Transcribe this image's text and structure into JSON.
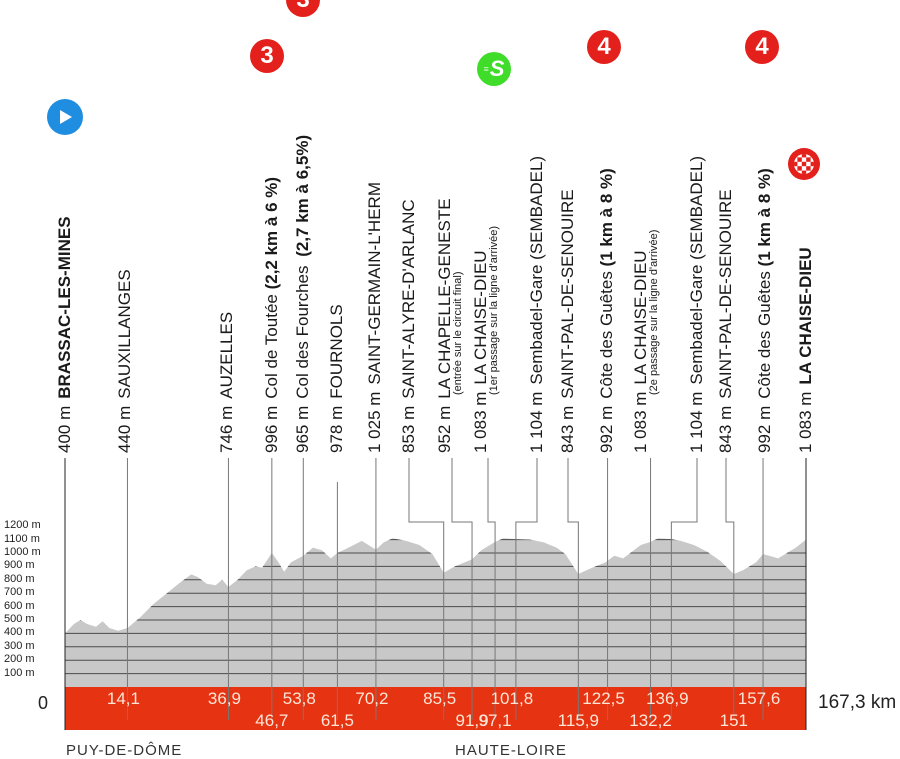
{
  "chart_data": {
    "type": "area",
    "title": "",
    "xlabel": "",
    "ylabel": "Altitude (m)",
    "xlim": [
      0,
      167.3
    ],
    "ylim": [
      0,
      1200
    ],
    "grid": true,
    "y_ticks": [
      "100 m",
      "200 m",
      "300 m",
      "400 m",
      "500 m",
      "600 m",
      "700 m",
      "800 m",
      "900 m",
      "1000 m",
      "1100 m",
      "1200 m"
    ],
    "x_origin_label": "0",
    "total_distance_label": "167,3 km",
    "colors": {
      "profile": "#c8c8c8",
      "band": "#e63312",
      "band_text": "#fde6d6",
      "grid": "#555555"
    },
    "waypoints": [
      {
        "km": 0,
        "km_label": "",
        "altitude": 400,
        "alt_label": "400 m",
        "name": "BRASSAC-LES-MINES",
        "bold": true,
        "icon": "start-icon"
      },
      {
        "km": 14.1,
        "km_label": "14,1",
        "altitude": 440,
        "alt_label": "440 m",
        "name": "SAUXILLANGES"
      },
      {
        "km": 36.9,
        "km_label": "36,9",
        "altitude": 746,
        "alt_label": "746 m",
        "name": "AUZELLES"
      },
      {
        "km": 46.7,
        "km_label": "46,7",
        "altitude": 996,
        "alt_label": "996 m",
        "name": "Col de Toutée",
        "detail": "(2,2 km à 6 %)",
        "category": "3"
      },
      {
        "km": 53.8,
        "km_label": "53,8",
        "altitude": 965,
        "alt_label": "965 m",
        "name": "Col des Fourches",
        "detail": "(2,7 km à 6,5%)",
        "category": "3"
      },
      {
        "km": 61.5,
        "km_label": "61,5",
        "altitude": 978,
        "alt_label": "978 m",
        "name": "FOURNOLS"
      },
      {
        "km": 70.2,
        "km_label": "70,2",
        "altitude": 1025,
        "alt_label": "1 025 m",
        "name": "SAINT-GERMAIN-L'HERM"
      },
      {
        "km": 85.5,
        "km_label": "85,5",
        "altitude": 853,
        "alt_label": "853 m",
        "name": "SAINT-ALYRE-D'ARLANC"
      },
      {
        "km": 91.9,
        "km_label": "91,9",
        "altitude": 952,
        "alt_label": "952 m",
        "name": "LA CHAPELLE-GENESTE",
        "note": "(entrée sur le circuit final)"
      },
      {
        "km": 97.1,
        "km_label": "97,1",
        "altitude": 1083,
        "alt_label": "1 083 m",
        "name": "LA CHAISE-DIEU",
        "note": "(1er passage sur la ligne d'arrivée)",
        "icon": "sprint-icon"
      },
      {
        "km": 101.8,
        "km_label": "101,8",
        "altitude": 1104,
        "alt_label": "1 104 m",
        "name": "Sembadel-Gare (SEMBADEL)"
      },
      {
        "km": 115.9,
        "km_label": "115,9",
        "altitude": 843,
        "alt_label": "843 m",
        "name": "SAINT-PAL-DE-SENOUIRE"
      },
      {
        "km": 122.5,
        "km_label": "122,5",
        "altitude": 992,
        "alt_label": "992 m",
        "name": "Côte des Guêtes",
        "detail": "(1 km à 8 %)",
        "category": "4"
      },
      {
        "km": 132.2,
        "km_label": "132,2",
        "altitude": 1083,
        "alt_label": "1 083 m",
        "name": "LA CHAISE-DIEU",
        "note": "(2e passage sur la ligne d'arrivée)"
      },
      {
        "km": 136.9,
        "km_label": "136,9",
        "altitude": 1104,
        "alt_label": "1 104 m",
        "name": "Sembadel-Gare (SEMBADEL)"
      },
      {
        "km": 151,
        "km_label": "151",
        "altitude": 843,
        "alt_label": "843 m",
        "name": "SAINT-PAL-DE-SENOUIRE"
      },
      {
        "km": 157.6,
        "km_label": "157,6",
        "altitude": 992,
        "alt_label": "992 m",
        "name": "Côte des Guêtes",
        "detail": "(1 km à 8 %)",
        "category": "4"
      },
      {
        "km": 167.3,
        "km_label": "",
        "altitude": 1083,
        "alt_label": "1 083 m",
        "name": "LA CHAISE-DIEU",
        "bold": true,
        "icon": "finish-icon"
      }
    ],
    "km_labels_top": [
      "14,1",
      "36,9",
      "53,8",
      "70,2",
      "85,5",
      "101,8",
      "122,5",
      "136,9",
      "157,6"
    ],
    "km_labels_bottom": [
      "46,7",
      "61,5",
      "91,9",
      "97,1",
      "115,9",
      "132,2",
      "151"
    ],
    "regions": [
      "PUY-DE-DÔME",
      "HAUTE-LOIRE"
    ]
  },
  "badges": {
    "cat1": "3",
    "cat2": "3",
    "cat3": "4",
    "cat4": "4",
    "sprint": "S"
  }
}
